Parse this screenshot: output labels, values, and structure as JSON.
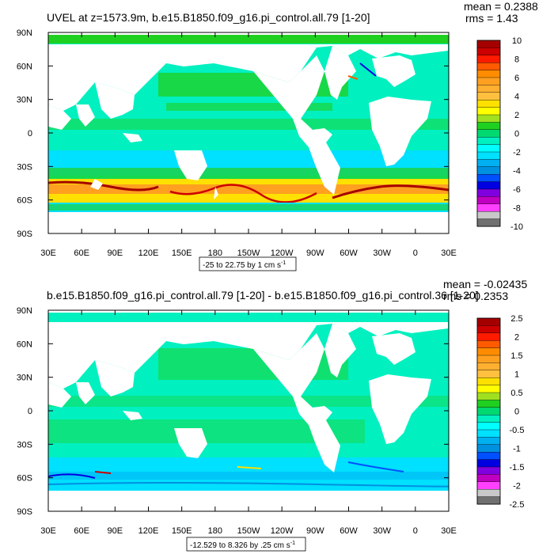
{
  "chart_data": [
    {
      "type": "heatmap",
      "title": "UVEL at z=1573.9m, b.e15.B1850.f09_g16.pi_control.all.79 [1-20]",
      "stats": {
        "mean": "mean = 0.2388",
        "rms": "rms = 1.43"
      },
      "x_tick_labels": [
        "30E",
        "60E",
        "90E",
        "120E",
        "150E",
        "180",
        "150W",
        "120W",
        "90W",
        "60W",
        "30W",
        "0",
        "30E"
      ],
      "y_tick_labels": [
        "90N",
        "60N",
        "30N",
        "0",
        "30S",
        "60S",
        "90S"
      ],
      "xlim": [
        30,
        390
      ],
      "ylim": [
        -90,
        90
      ],
      "range_note": "-25 to 22.75 by 1 cm s",
      "range_unit_superscript": "-1",
      "colorbar": {
        "labels": [
          "10",
          "8",
          "6",
          "4",
          "2",
          "0",
          "-2",
          "-4",
          "-6",
          "-8",
          "-10"
        ],
        "colors": [
          "#a50000",
          "#cc0000",
          "#ff1a00",
          "#ff5a00",
          "#ff8c00",
          "#ffa020",
          "#ffb030",
          "#ffc040",
          "#ffe000",
          "#ffff00",
          "#a0e020",
          "#20d020",
          "#00d870",
          "#00f0c0",
          "#00ffff",
          "#00e0ff",
          "#00b0f0",
          "#0090e0",
          "#0050ff",
          "#0000e0",
          "#8000e0",
          "#c000c0",
          "#ff40ff",
          "#c8c8c8",
          "#707070"
        ]
      }
    },
    {
      "type": "heatmap",
      "title": "b.e15.B1850.f09_g16.pi_control.all.79 [1-20] - b.e15.B1850.f09_g16.pi_control.36 [1-20]",
      "stats": {
        "mean": "mean = -0.02435",
        "rms": "rms = 0.2353"
      },
      "x_tick_labels": [
        "30E",
        "60E",
        "90E",
        "120E",
        "150E",
        "180",
        "150W",
        "120W",
        "90W",
        "60W",
        "30W",
        "0",
        "30E"
      ],
      "y_tick_labels": [
        "90N",
        "60N",
        "30N",
        "0",
        "30S",
        "60S",
        "90S"
      ],
      "xlim": [
        30,
        390
      ],
      "ylim": [
        -90,
        90
      ],
      "range_note": "-12.529 to 8.326 by .25 cm s",
      "range_unit_superscript": "-1",
      "colorbar": {
        "labels": [
          "2.5",
          "2",
          "1.5",
          "1",
          "0.5",
          "0",
          "-0.5",
          "-1",
          "-1.5",
          "-2",
          "-2.5"
        ],
        "colors": [
          "#a50000",
          "#cc0000",
          "#ff1a00",
          "#ff5a00",
          "#ff8c00",
          "#ffa020",
          "#ffb030",
          "#ffc040",
          "#ffe000",
          "#ffff00",
          "#a0e020",
          "#20d020",
          "#00d870",
          "#00f0c0",
          "#00ffff",
          "#00e0ff",
          "#00b0f0",
          "#0090e0",
          "#0050ff",
          "#0000e0",
          "#8000e0",
          "#c000c0",
          "#ff40ff",
          "#c8c8c8",
          "#707070"
        ]
      }
    }
  ]
}
